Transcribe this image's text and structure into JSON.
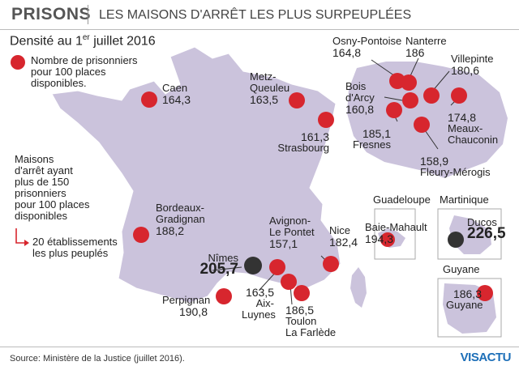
{
  "header": {
    "title": "PRISONS",
    "subtitle": "LES MAISONS D'ARRÊT LES PLUS SURPEUPLÉES"
  },
  "density": {
    "prefix": "Densité au 1",
    "sup": "er",
    "suffix": " juillet 2016"
  },
  "legend": {
    "dot_label": [
      "Nombre de prisonniers",
      "pour 100 places",
      "disponibles."
    ],
    "threshold_label": [
      "Maisons",
      "d'arrêt ayant",
      "plus de 150",
      "prisonniers",
      "pour 100 places",
      "disponibles"
    ],
    "count_label": [
      "20 établissements",
      "les plus peuplés"
    ]
  },
  "colors": {
    "dot_standard": "#d7262e",
    "dot_highlight": "#333333",
    "land": "#cbc3dc",
    "arrow": "#d7262e"
  },
  "map_data": {
    "prisons": [
      {
        "name": "Caen",
        "value": "164,3",
        "highlight": false
      },
      {
        "name": "Metz-Queuleu",
        "name_lines": [
          "Metz-",
          "Queuleu"
        ],
        "value": "163,5",
        "highlight": false
      },
      {
        "name": "Strasbourg",
        "value": "161,3",
        "highlight": false
      },
      {
        "name": "Osny-Pontoise",
        "value": "164,8",
        "highlight": false
      },
      {
        "name": "Nanterre",
        "value": "186",
        "highlight": false
      },
      {
        "name": "Villepinte",
        "value": "180,6",
        "highlight": false
      },
      {
        "name": "Bois d'Arcy",
        "name_lines": [
          "Bois",
          "d'Arcy"
        ],
        "value": "160,8",
        "highlight": false
      },
      {
        "name": "Fresnes",
        "value": "185,1",
        "highlight": false
      },
      {
        "name": "Meaux-Chauconin",
        "name_lines": [
          "Meaux-",
          "Chauconin"
        ],
        "value": "174,8",
        "highlight": false
      },
      {
        "name": "Fleury-Mérogis",
        "value": "158,9",
        "highlight": false
      },
      {
        "name": "Bordeaux-Gradignan",
        "name_lines": [
          "Bordeaux-",
          "Gradignan"
        ],
        "value": "188,2",
        "highlight": false
      },
      {
        "name": "Avignon-Le Pontet",
        "name_lines": [
          "Avignon-",
          "Le Pontet"
        ],
        "value": "157,1",
        "highlight": false
      },
      {
        "name": "Nice",
        "value": "182,4",
        "highlight": false
      },
      {
        "name": "Nîmes",
        "value": "205,7",
        "highlight": true
      },
      {
        "name": "Aix-Luynes",
        "name_lines": [
          "Aix-",
          "Luynes"
        ],
        "value": "163,5",
        "highlight": false
      },
      {
        "name": "Toulon La Farlède",
        "name_lines": [
          "Toulon",
          "La Farlède"
        ],
        "value": "186,5",
        "highlight": false
      },
      {
        "name": "Perpignan",
        "value": "190,8",
        "highlight": false
      },
      {
        "name": "Baie-Mahault",
        "value": "194,3",
        "highlight": false
      },
      {
        "name": "Ducos",
        "value": "226,5",
        "highlight": true
      },
      {
        "name": "Guyane",
        "value": "186,3",
        "highlight": false
      }
    ],
    "insets": {
      "guadeloupe": "Guadeloupe",
      "martinique": "Martinique",
      "guyane": "Guyane"
    }
  },
  "footer": {
    "source": "Source: Ministère de la Justice (juillet 2016).",
    "logo": "VISACTU"
  }
}
